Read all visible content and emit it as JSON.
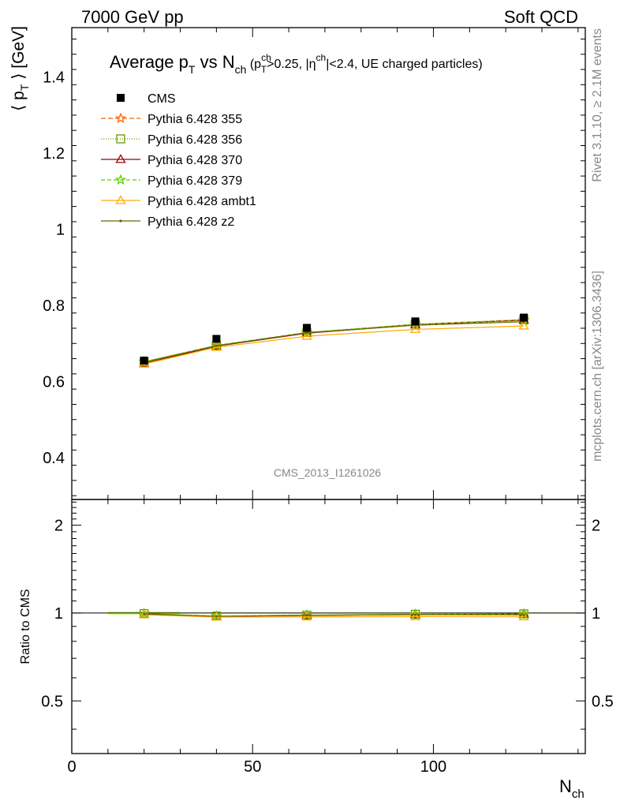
{
  "header": {
    "left": "7000 GeV pp",
    "right": "Soft QCD"
  },
  "side": {
    "rivet": "Rivet 3.1.10, ≥ 2.1M events",
    "mcplots": "mcplots.cern.ch [arXiv:1306.3436]"
  },
  "chart_data": {
    "type": "line",
    "title": {
      "main": "Average p",
      "main_sub": "T",
      "mid": " vs N",
      "mid_sub": "ch",
      "cond_a": " (p",
      "cond_a_sup": "ch",
      "cond_a_sub": "T",
      "cond_b": ">0.25, |η",
      "cond_b_sup": "ch",
      "cond_c": "|<2.4, UE charged particles)"
    },
    "watermark": "CMS_2013_I1261026",
    "ylabel": {
      "open": "⟨ p",
      "sub": "T",
      "close": " ⟩ [GeV]"
    },
    "xlabel": {
      "main": "N",
      "sub": "ch"
    },
    "ratio_ylabel": "Ratio to CMS",
    "xlim": [
      0,
      142
    ],
    "ylim": [
      0.29,
      1.53
    ],
    "ratio_ylim": [
      0.33,
      2.45
    ],
    "x_ticks": [
      0,
      50,
      100
    ],
    "y_ticks": [
      0.4,
      0.6,
      0.8,
      1,
      1.2,
      1.4
    ],
    "ratio_ticks": [
      0.5,
      1,
      2
    ],
    "x": [
      20,
      40,
      65,
      95,
      125
    ],
    "data": {
      "name": "CMS",
      "y": [
        0.655,
        0.712,
        0.741,
        0.758,
        0.768
      ],
      "band_x": [
        10,
        30
      ]
    },
    "series": [
      {
        "name": "Pythia 6.428 355",
        "color": "#ff6600",
        "dash": "6,3",
        "marker": "star",
        "y": [
          0.652,
          0.694,
          0.728,
          0.75,
          0.762
        ]
      },
      {
        "name": "Pythia 6.428 356",
        "color": "#669900",
        "dash": "1,2",
        "marker": "square",
        "y": [
          0.652,
          0.695,
          0.729,
          0.751,
          0.763
        ]
      },
      {
        "name": "Pythia 6.428 370",
        "color": "#990000",
        "dash": "",
        "marker": "triangle",
        "y": [
          0.647,
          0.693,
          0.727,
          0.749,
          0.761
        ]
      },
      {
        "name": "Pythia 6.428 379",
        "color": "#66cc00",
        "dash": "5,3",
        "marker": "star",
        "y": [
          0.652,
          0.695,
          0.729,
          0.75,
          0.76
        ]
      },
      {
        "name": "Pythia 6.428 ambt1",
        "color": "#ffaa00",
        "dash": "",
        "marker": "triangle-open",
        "y": [
          0.646,
          0.69,
          0.719,
          0.737,
          0.746
        ]
      },
      {
        "name": "Pythia 6.428 z2",
        "color": "#666600",
        "dash": "",
        "marker": "dot",
        "y": [
          0.65,
          0.694,
          0.728,
          0.748,
          0.757
        ]
      }
    ]
  }
}
